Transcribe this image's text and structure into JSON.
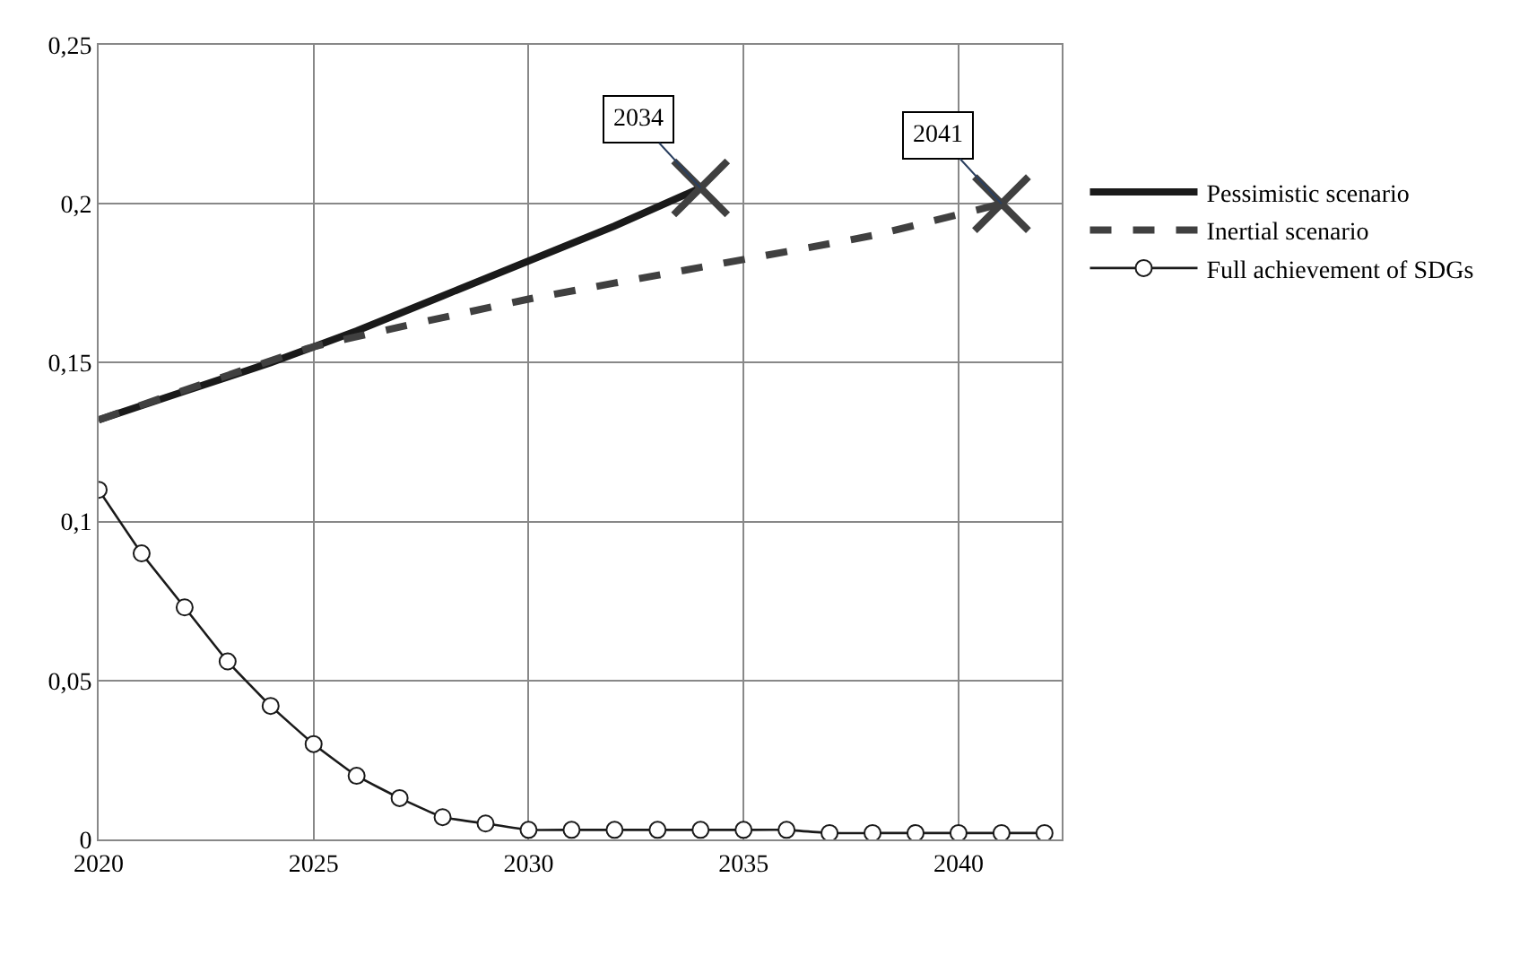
{
  "chart_data": {
    "type": "line",
    "series": [
      {
        "name": "Pessimistic scenario",
        "color": "#1a1a1a",
        "line_style": "solid",
        "marker": "none",
        "x": [
          2020,
          2022,
          2024,
          2026,
          2028,
          2030,
          2032,
          2034
        ],
        "values": [
          0.132,
          0.141,
          0.15,
          0.16,
          0.171,
          0.182,
          0.193,
          0.205
        ]
      },
      {
        "name": "Inertial scenario",
        "color": "#404040",
        "line_style": "dashed",
        "marker": "none",
        "x": [
          2020,
          2025,
          2030,
          2034,
          2038,
          2041
        ],
        "values": [
          0.132,
          0.155,
          0.17,
          0.18,
          0.19,
          0.2
        ]
      },
      {
        "name": "Full achievement of SDGs",
        "color": "#1a1a1a",
        "line_style": "solid",
        "marker": "circle",
        "x": [
          2020,
          2021,
          2022,
          2023,
          2024,
          2025,
          2026,
          2027,
          2028,
          2029,
          2030,
          2031,
          2032,
          2033,
          2034,
          2035,
          2036,
          2037,
          2038,
          2039,
          2040,
          2041,
          2042
        ],
        "values": [
          0.11,
          0.09,
          0.073,
          0.056,
          0.042,
          0.03,
          0.02,
          0.013,
          0.007,
          0.005,
          0.003,
          0.003,
          0.003,
          0.003,
          0.003,
          0.003,
          0.003,
          0.002,
          0.002,
          0.002,
          0.002,
          0.002,
          0.002
        ]
      },
      {
        "type": "scatter",
        "color": "#404040",
        "marker": "cross",
        "x": [
          2034,
          2041
        ],
        "values": [
          0.205,
          0.2
        ]
      }
    ],
    "annotations": [
      {
        "text": "2034",
        "x": 2034,
        "y": 0.205
      },
      {
        "text": "2041",
        "x": 2041,
        "y": 0.2
      }
    ],
    "xlim": [
      2020,
      2042.4
    ],
    "xticks": [
      2020,
      2025,
      2030,
      2035,
      2040
    ],
    "ylim": [
      0,
      0.25
    ],
    "yticks": [
      0,
      {
        "value": 0.05,
        "label": "0,05"
      },
      {
        "value": 0.1,
        "label": "0,1"
      },
      {
        "value": 0.15,
        "label": "0,15"
      },
      {
        "value": 0.2,
        "label": "0,2"
      },
      {
        "value": 0.25,
        "label": "0,25"
      }
    ],
    "grid": true,
    "legend": "right"
  }
}
